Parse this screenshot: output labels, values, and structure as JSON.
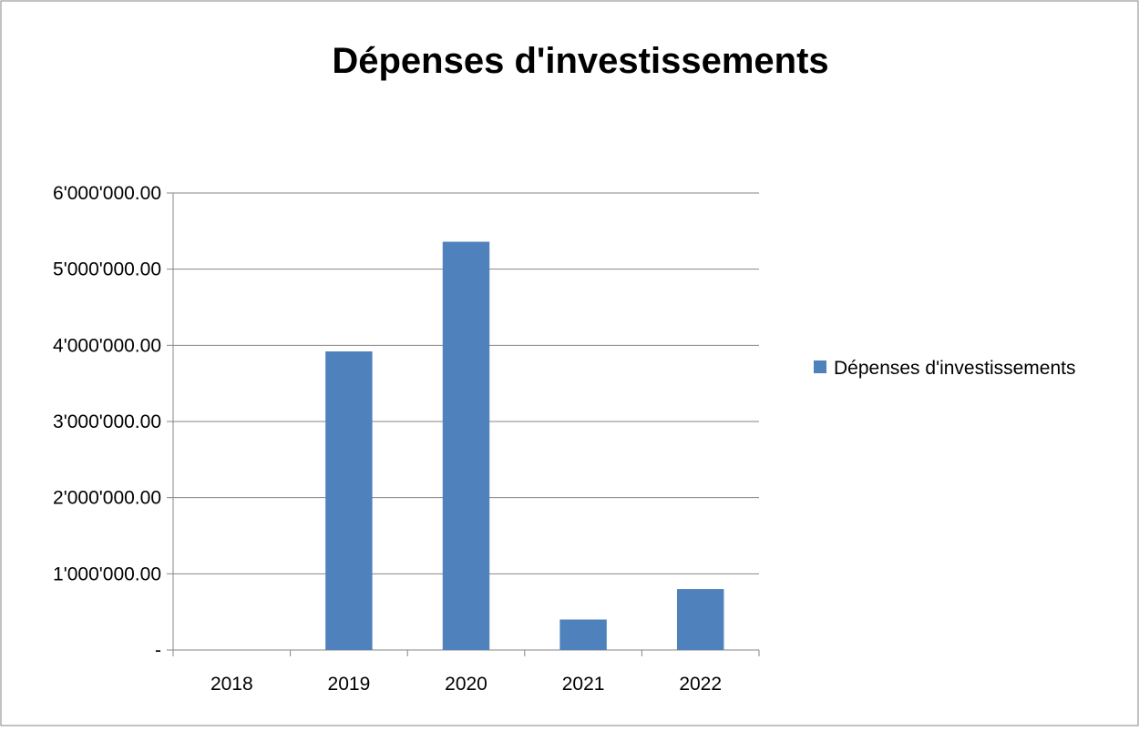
{
  "chart_data": {
    "type": "bar",
    "title": "Dépenses d'investissements",
    "xlabel": "",
    "ylabel": "",
    "categories": [
      "2018",
      "2019",
      "2020",
      "2021",
      "2022"
    ],
    "series": [
      {
        "name": "Dépenses d'investissements",
        "values": [
          0,
          3920000,
          5360000,
          400000,
          800000
        ],
        "color": "#4F81BD"
      }
    ],
    "ylim": [
      0,
      6000000
    ],
    "yticks": [
      {
        "value": 0,
        "label": "-"
      },
      {
        "value": 1000000,
        "label": "1'000'000.00"
      },
      {
        "value": 2000000,
        "label": "2'000'000.00"
      },
      {
        "value": 3000000,
        "label": "3'000'000.00"
      },
      {
        "value": 4000000,
        "label": "4'000'000.00"
      },
      {
        "value": 5000000,
        "label": "5'000'000.00"
      },
      {
        "value": 6000000,
        "label": "6'000'000.00"
      }
    ],
    "grid": true,
    "legend_position": "right"
  }
}
